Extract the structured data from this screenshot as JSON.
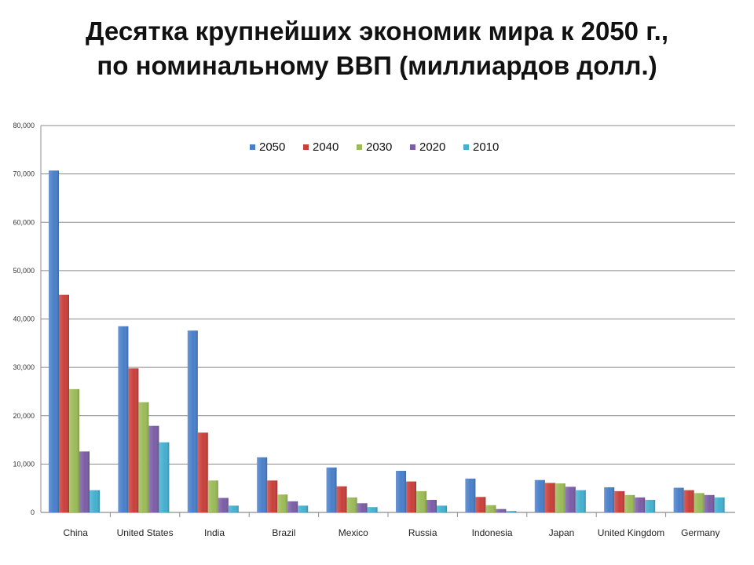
{
  "slide": {
    "title_line1": "Десятка крупнейших экономик мира к 2050 г.,",
    "title_line2": "по номинальному ВВП (миллиардов долл.)"
  },
  "chart_data": {
    "type": "bar",
    "title": "",
    "xlabel": "",
    "ylabel": "",
    "ylim": [
      0,
      80000
    ],
    "yticks": [
      0,
      10000,
      20000,
      30000,
      40000,
      50000,
      60000,
      70000,
      80000
    ],
    "ytick_labels": [
      "0",
      "10,000",
      "20,000",
      "30,000",
      "40,000",
      "50,000",
      "60,000",
      "70,000",
      "80,000"
    ],
    "grid": true,
    "legend_position": "top-center",
    "categories": [
      "China",
      "United States",
      "India",
      "Brazil",
      "Mexico",
      "Russia",
      "Indonesia",
      "Japan",
      "United Kingdom",
      "Germany"
    ],
    "series": [
      {
        "name": "2050",
        "color": "#4a7fc9",
        "values": [
          70700,
          38500,
          37600,
          11400,
          9300,
          8600,
          7000,
          6700,
          5200,
          5100
        ]
      },
      {
        "name": "2040",
        "color": "#c9403b",
        "values": [
          45000,
          29800,
          16500,
          6600,
          5400,
          6400,
          3200,
          6100,
          4400,
          4600
        ]
      },
      {
        "name": "2030",
        "color": "#9bbb58",
        "values": [
          25500,
          22800,
          6600,
          3700,
          3100,
          4400,
          1500,
          6000,
          3600,
          4000
        ]
      },
      {
        "name": "2020",
        "color": "#7b5ea6",
        "values": [
          12600,
          17900,
          3000,
          2300,
          1900,
          2600,
          700,
          5300,
          3100,
          3600
        ]
      },
      {
        "name": "2010",
        "color": "#45b0cf",
        "values": [
          4600,
          14500,
          1400,
          1400,
          1100,
          1400,
          300,
          4600,
          2600,
          3100
        ]
      }
    ]
  }
}
